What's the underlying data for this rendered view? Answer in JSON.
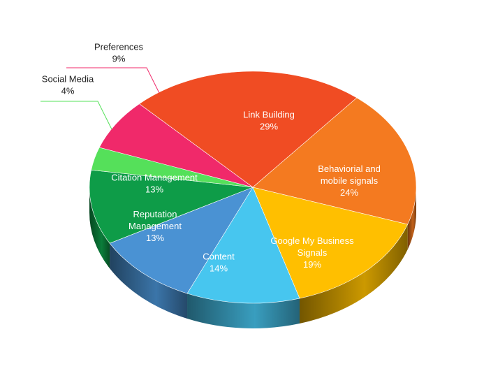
{
  "chart_data": {
    "type": "pie",
    "style": "3d",
    "title": "",
    "slices": [
      {
        "label": [
          "Link Building"
        ],
        "value": 29,
        "value_label": "29%",
        "color": "#F04C23"
      },
      {
        "label": [
          "Behaviorial and",
          "mobile signals"
        ],
        "value": 24,
        "value_label": "24%",
        "color": "#F47A20"
      },
      {
        "label": [
          "Google My Business",
          "Signals"
        ],
        "value": 19,
        "value_label": "19%",
        "color": "#FFBF00"
      },
      {
        "label": [
          "Content"
        ],
        "value": 14,
        "value_label": "14%",
        "color": "#47C6EF"
      },
      {
        "label": [
          "Reputation",
          "Management"
        ],
        "value": 13,
        "value_label": "13%",
        "color": "#4A92D3"
      },
      {
        "label": [
          "Citation Management"
        ],
        "value": 13,
        "value_label": "13%",
        "color": "#0E9C48"
      },
      {
        "label": [
          "Social Media"
        ],
        "value": 4,
        "value_label": "4%",
        "color": "#55E05A",
        "outside": true
      },
      {
        "label": [
          "Preferences"
        ],
        "value": 9,
        "value_label": "9%",
        "color": "#F0296A",
        "outside": true
      }
    ]
  }
}
